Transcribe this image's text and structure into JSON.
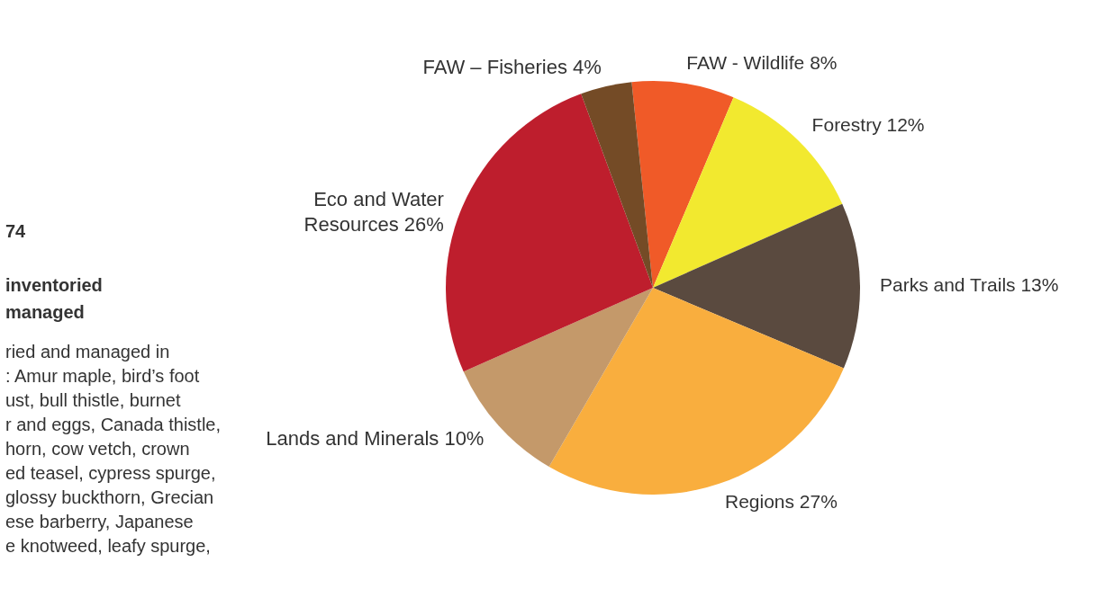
{
  "chart_data": {
    "type": "pie",
    "categories": [
      "FAW - Wildlife",
      "Forestry",
      "Parks and Trails",
      "Regions",
      "Lands and Minerals",
      "Eco and Water Resources",
      "FAW – Fisheries"
    ],
    "values": [
      8,
      12,
      13,
      27,
      10,
      26,
      4
    ],
    "value_labels": [
      "8%",
      "12%",
      "13%",
      "27%",
      "10%",
      "26%",
      "4%"
    ],
    "colors": [
      "#f05a28",
      "#f2e92f",
      "#5a4a3f",
      "#f9ae3e",
      "#c4996a",
      "#be1e2d",
      "#744b26"
    ],
    "annotations": [
      "74",
      "inventoried",
      "managed",
      "ried and managed in",
      ": Amur maple, bird’s foot",
      "ust, bull thistle, burnet",
      "r and eggs, Canada thistle,",
      "horn, cow vetch, crown",
      "ed teasel, cypress spurge,",
      "glossy buckthorn, Grecian",
      "ese barberry, Japanese",
      "e knotweed, leafy spurge,"
    ]
  }
}
